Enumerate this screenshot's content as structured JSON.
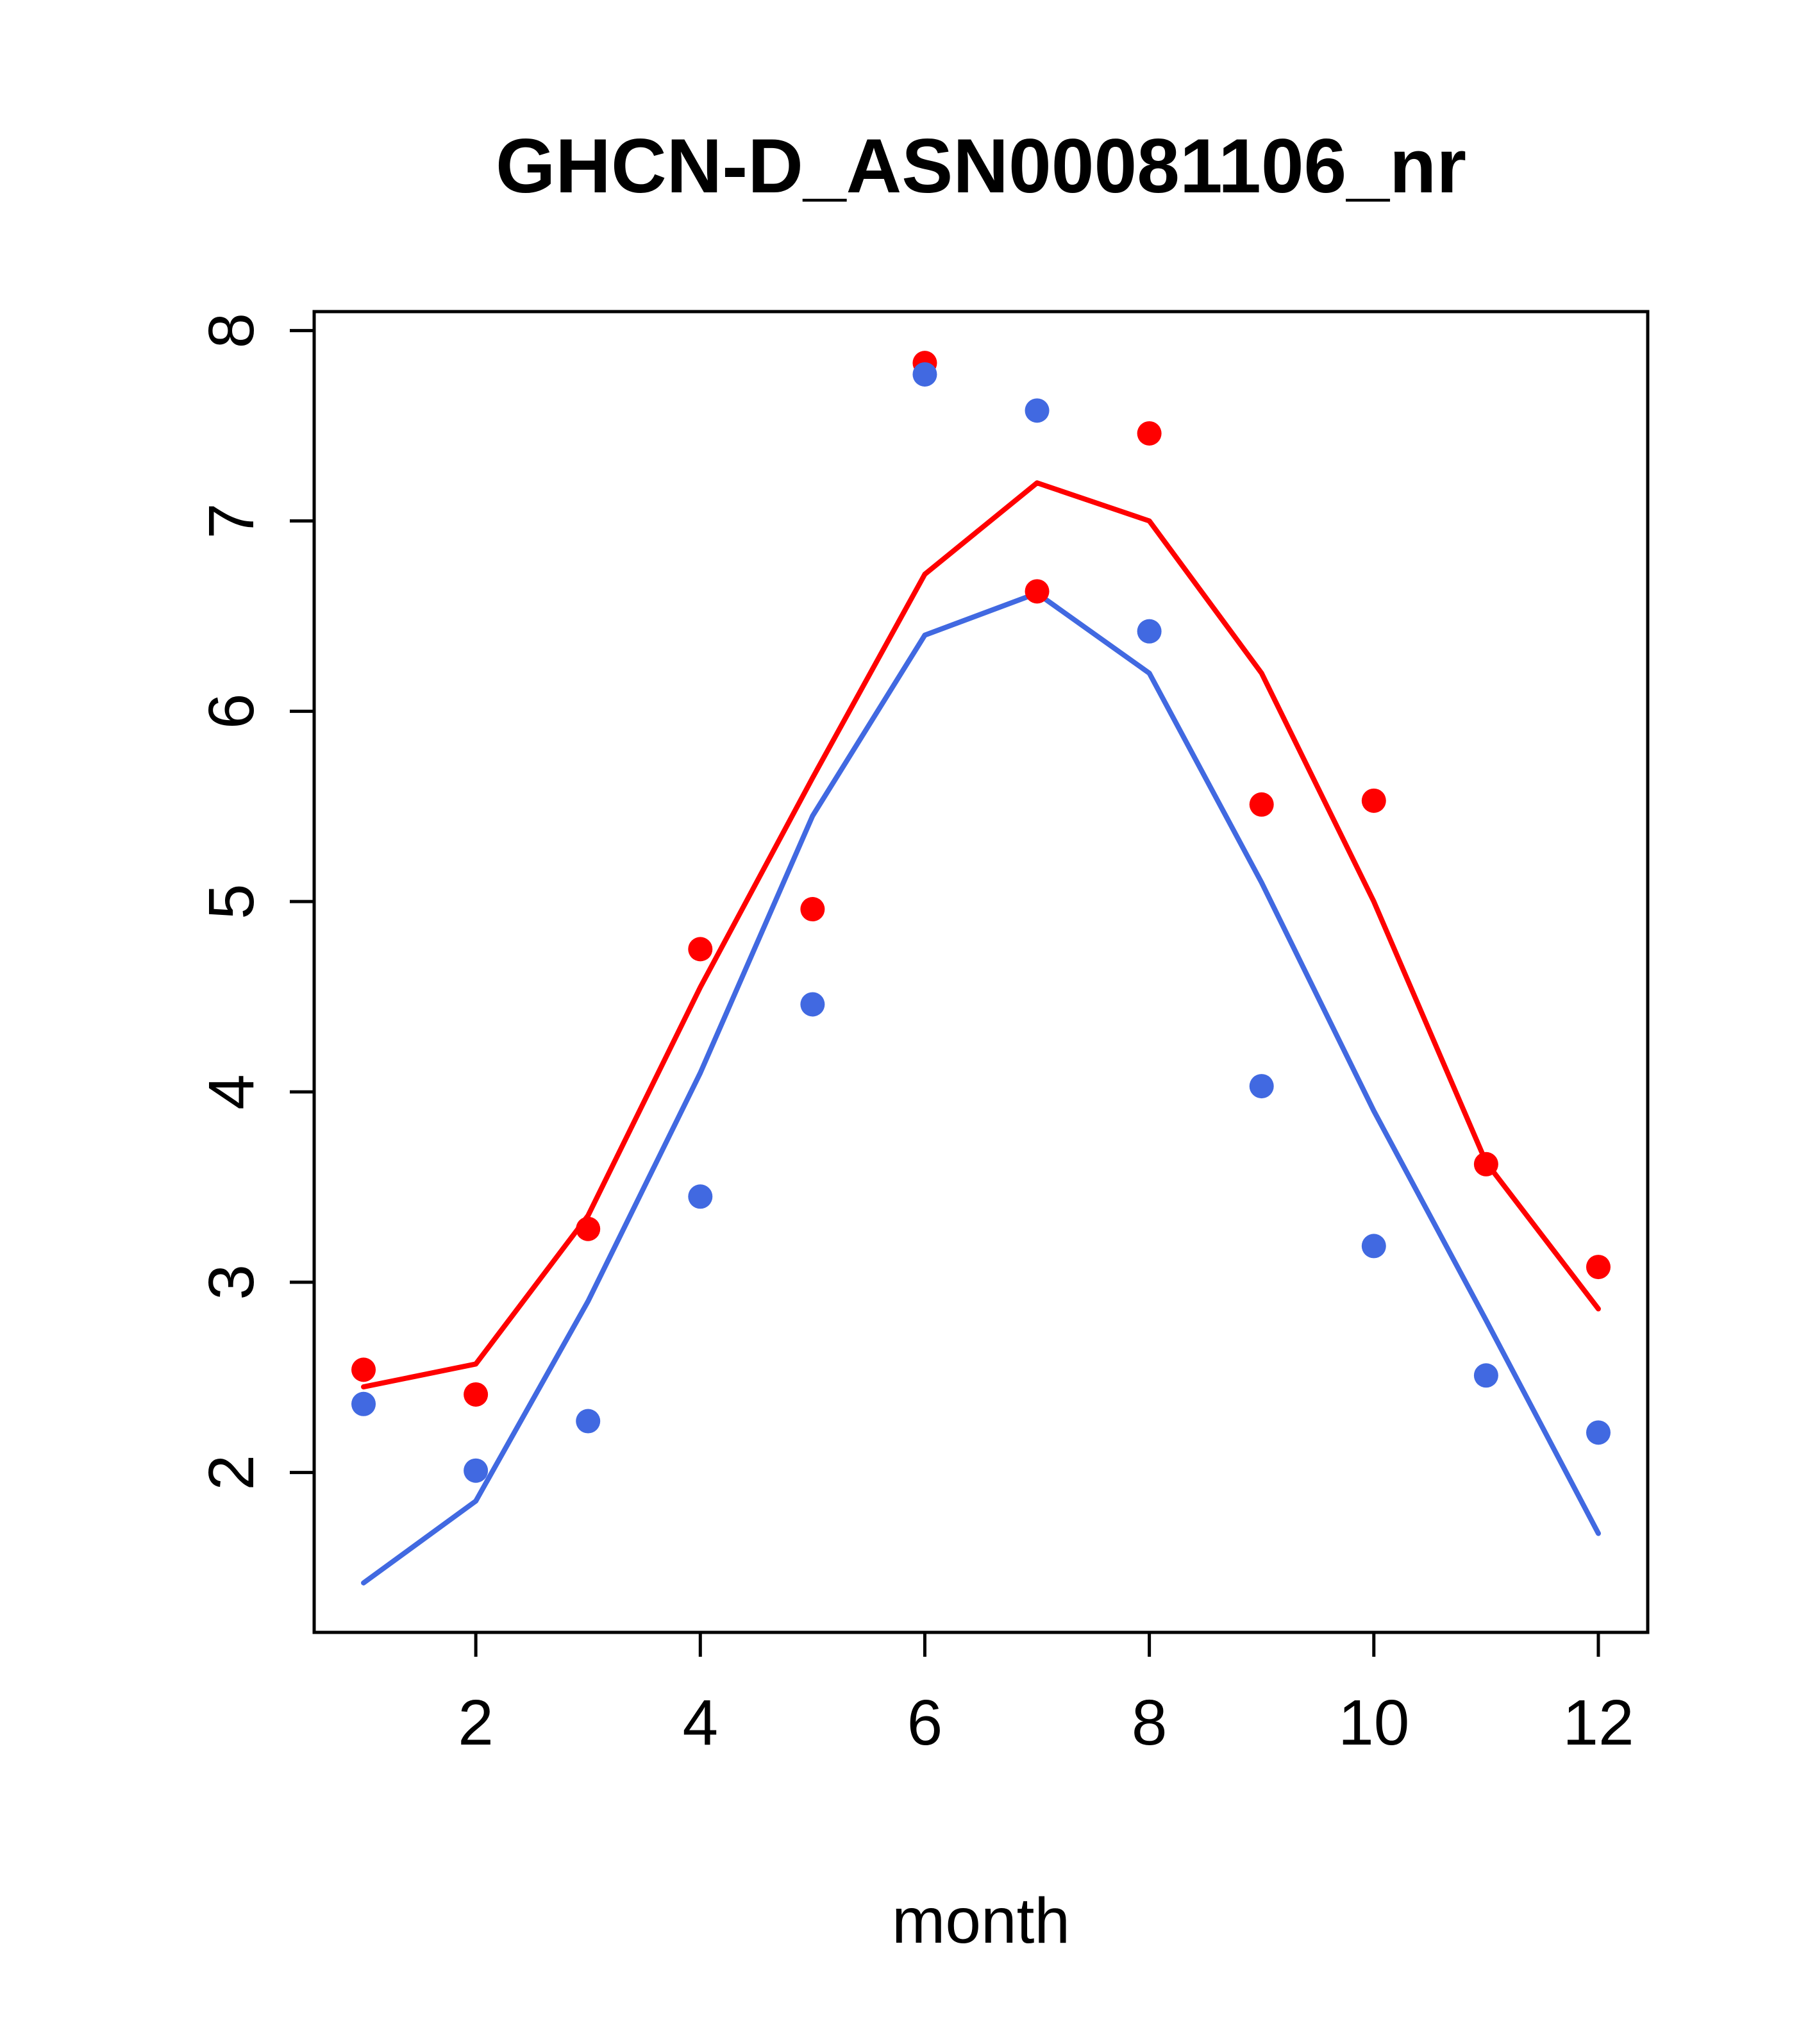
{
  "title": "GHCN-D_ASN00081106_nr",
  "xlabel": "month",
  "chart_data": {
    "type": "line",
    "title": "GHCN-D_ASN00081106_nr",
    "xlabel": "month",
    "ylabel": "",
    "x": [
      1,
      2,
      3,
      4,
      5,
      6,
      7,
      8,
      9,
      10,
      11,
      12
    ],
    "xticks": [
      2,
      4,
      6,
      8,
      10,
      12
    ],
    "yticks": [
      2,
      3,
      4,
      5,
      6,
      7,
      8
    ],
    "xlim": [
      0.56,
      12.44
    ],
    "ylim": [
      1.16,
      8.1
    ],
    "grid": false,
    "legend_position": "none",
    "background": "#ffffff",
    "colors": {
      "red": "#ff0000",
      "blue": "#4169e1",
      "axis": "#000000"
    },
    "series": [
      {
        "name": "red-points",
        "type": "scatter",
        "color": "#ff0000",
        "values": [
          2.54,
          2.41,
          3.28,
          4.75,
          4.96,
          7.83,
          6.63,
          7.46,
          5.51,
          5.53,
          3.62,
          3.08
        ]
      },
      {
        "name": "blue-points",
        "type": "scatter",
        "color": "#4169e1",
        "values": [
          2.36,
          2.01,
          2.27,
          3.45,
          4.46,
          7.77,
          7.58,
          6.42,
          4.03,
          3.19,
          2.51,
          2.21
        ]
      },
      {
        "name": "red-line",
        "type": "line",
        "color": "#ff0000",
        "values": [
          2.45,
          2.57,
          3.35,
          4.55,
          5.65,
          6.72,
          7.2,
          7.0,
          6.2,
          5.0,
          3.63,
          2.86
        ]
      },
      {
        "name": "blue-line",
        "type": "line",
        "color": "#4169e1",
        "values": [
          1.42,
          1.85,
          2.9,
          4.1,
          5.45,
          6.4,
          6.62,
          6.2,
          5.1,
          3.9,
          2.8,
          1.68
        ]
      }
    ]
  }
}
